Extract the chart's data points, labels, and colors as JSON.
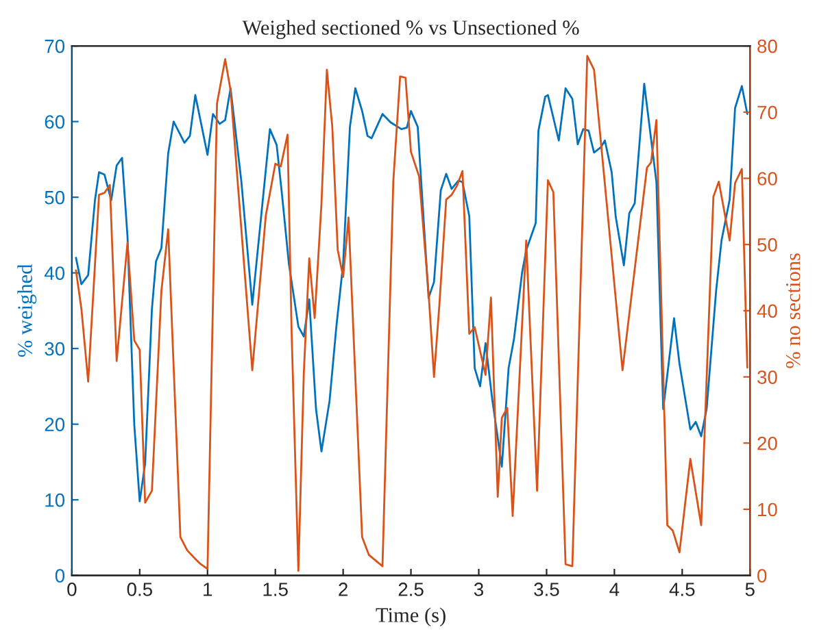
{
  "chart_data": {
    "type": "line",
    "title": "Weighed sectioned % vs Unsectioned %",
    "xlabel": "Time (s)",
    "ylabel": "% weighed",
    "y2label": "% no sections",
    "xlim": [
      0,
      5
    ],
    "xticks": [
      0,
      0.5,
      1,
      1.5,
      2,
      2.5,
      3,
      3.5,
      4,
      4.5,
      5
    ],
    "ylim": [
      0,
      70
    ],
    "yticks": [
      0,
      10,
      20,
      30,
      40,
      50,
      60,
      70
    ],
    "y2lim": [
      0,
      80
    ],
    "y2ticks": [
      0,
      10,
      20,
      30,
      40,
      50,
      60,
      70,
      80
    ],
    "grid": false,
    "legend": false,
    "series": [
      {
        "color": "#0072bd",
        "x": [
          0.03,
          0.07,
          0.12,
          0.17,
          0.2,
          0.24,
          0.29,
          0.33,
          0.37,
          0.41,
          0.46,
          0.5,
          0.54,
          0.59,
          0.62,
          0.66,
          0.71,
          0.75,
          0.83,
          0.87,
          0.91,
          1.0,
          1.04,
          1.09,
          1.13,
          1.17,
          1.25,
          1.33,
          1.46,
          1.51,
          1.55,
          1.6,
          1.67,
          1.71,
          1.75,
          1.8,
          1.84,
          1.9,
          1.95,
          2.0,
          2.05,
          2.09,
          2.14,
          2.18,
          2.21,
          2.29,
          2.35,
          2.43,
          2.47,
          2.5,
          2.55,
          2.63,
          2.67,
          2.72,
          2.76,
          2.8,
          2.85,
          2.88,
          2.93,
          2.97,
          3.01,
          3.05,
          3.1,
          3.17,
          3.22,
          3.26,
          3.32,
          3.35,
          3.42,
          3.44,
          3.49,
          3.51,
          3.59,
          3.64,
          3.69,
          3.73,
          3.77,
          3.81,
          3.85,
          3.9,
          3.93,
          3.98,
          4.01,
          4.07,
          4.11,
          4.15,
          4.22,
          4.31,
          4.36,
          4.44,
          4.48,
          4.56,
          4.6,
          4.64,
          4.68,
          4.75,
          4.79,
          4.85,
          4.89,
          4.94,
          4.98
        ],
        "values": [
          42,
          38.5,
          39.7,
          49.6,
          53.3,
          53,
          49.6,
          54.2,
          55.2,
          44.8,
          19.9,
          9.8,
          14.8,
          35.2,
          41.5,
          43.3,
          55.8,
          60,
          57.2,
          58.1,
          63.5,
          55.6,
          61,
          59.7,
          60.2,
          64.4,
          52,
          35.8,
          59,
          56.9,
          50.2,
          41.2,
          32.9,
          31.6,
          36.5,
          22,
          16.4,
          23.1,
          32.9,
          41.2,
          59.3,
          64.4,
          61.4,
          58.1,
          57.8,
          61,
          59.9,
          59,
          59.2,
          61.4,
          59.3,
          36.7,
          38.8,
          50.9,
          53.1,
          51.1,
          52.2,
          52,
          47.5,
          27.4,
          25,
          30.7,
          23.2,
          14.4,
          27.4,
          31.3,
          40.1,
          43,
          46.6,
          58.8,
          63.3,
          63.5,
          57.5,
          64.4,
          63,
          57,
          59,
          58.8,
          55.9,
          56.6,
          57.5,
          53.3,
          47.4,
          41,
          47.9,
          49.2,
          65,
          52,
          22,
          34,
          28,
          19.3,
          20.3,
          18.4,
          22,
          37.6,
          44.3,
          49.7,
          61.8,
          64.7,
          61
        ]
      },
      {
        "color": "#d95319",
        "axis": "y2",
        "x": [
          0.03,
          0.07,
          0.12,
          0.2,
          0.24,
          0.28,
          0.33,
          0.41,
          0.46,
          0.5,
          0.54,
          0.59,
          0.66,
          0.71,
          0.8,
          0.85,
          0.91,
          0.95,
          1.0,
          1.07,
          1.13,
          1.17,
          1.33,
          1.43,
          1.5,
          1.54,
          1.59,
          1.62,
          1.67,
          1.71,
          1.75,
          1.79,
          1.84,
          1.88,
          1.92,
          1.96,
          2.0,
          2.04,
          2.14,
          2.19,
          2.29,
          2.37,
          2.42,
          2.46,
          2.5,
          2.56,
          2.63,
          2.67,
          2.71,
          2.76,
          2.8,
          2.84,
          2.88,
          2.93,
          2.97,
          3.05,
          3.09,
          3.14,
          3.17,
          3.21,
          3.25,
          3.35,
          3.43,
          3.51,
          3.55,
          3.64,
          3.69,
          3.8,
          3.85,
          4.06,
          4.24,
          4.27,
          4.31,
          4.39,
          4.43,
          4.48,
          4.56,
          4.64,
          4.73,
          4.77,
          4.85,
          4.89,
          4.94,
          4.98
        ],
        "values": [
          46.1,
          40.3,
          29.3,
          57.5,
          57.8,
          59,
          32.4,
          50.3,
          35.5,
          34.1,
          11,
          12.8,
          43,
          52.3,
          5.8,
          3.8,
          2.5,
          1.7,
          1.0,
          71.3,
          78,
          73.3,
          31,
          54.4,
          62.2,
          61.8,
          66.6,
          36.8,
          0.7,
          30.6,
          47.9,
          38.9,
          56.1,
          76.4,
          67.8,
          49.2,
          45.1,
          54.1,
          5.8,
          3.1,
          1.4,
          59.6,
          75.4,
          75.2,
          64,
          60.3,
          42.7,
          30,
          41,
          56.8,
          57.5,
          58.9,
          61.1,
          36.5,
          37.5,
          30.3,
          42,
          11.9,
          23.8,
          25.3,
          9,
          50.6,
          12.8,
          59.7,
          57.9,
          1.7,
          1.4,
          78.5,
          76.4,
          31,
          61.6,
          62.4,
          68.8,
          7.6,
          6.8,
          3.5,
          17.6,
          7.6,
          57.2,
          59.5,
          50.6,
          59.3,
          61.4,
          31.4
        ]
      }
    ]
  }
}
